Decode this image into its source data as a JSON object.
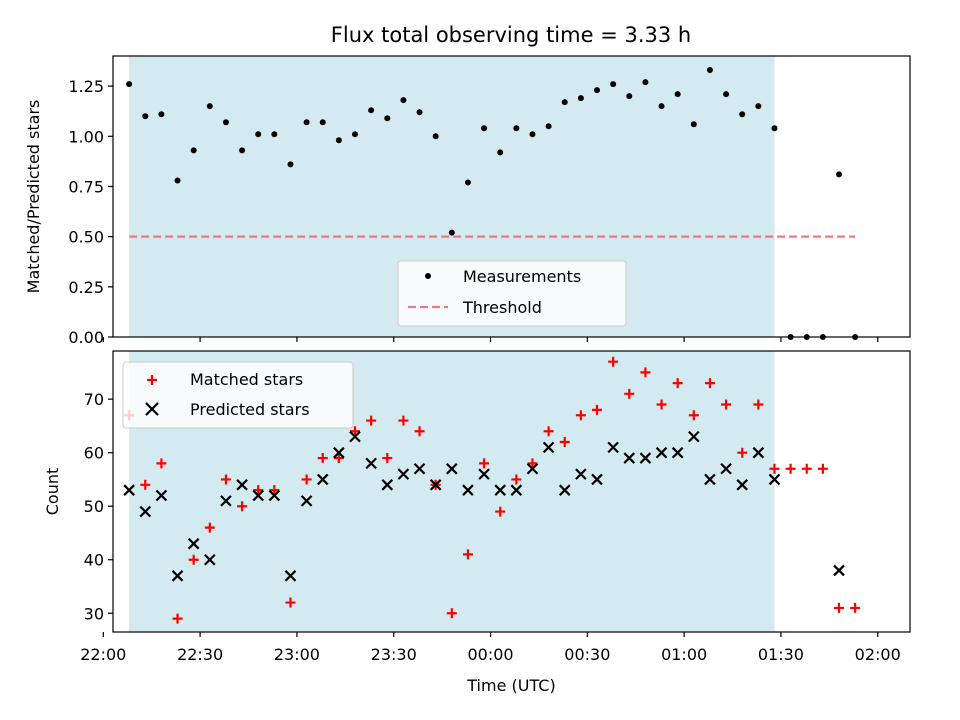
{
  "title": "Flux total observing time = 3.33 h",
  "colors": {
    "span": "#d4eaf1",
    "threshold": "#f07a7a",
    "measurement": "#000000",
    "matched": "#ff0000",
    "predicted": "#000000"
  },
  "chart_data": [
    {
      "type": "scatter",
      "ylabel": "Matched/Predicted stars",
      "ylim": [
        0,
        1.4
      ],
      "xlim_min": [
        -5,
        242
      ],
      "yticks": [
        0,
        0.25,
        0.5,
        0.75,
        1.0,
        1.25
      ],
      "ytick_labels": [
        "0.00",
        "0.25",
        "0.50",
        "0.75",
        "1.00",
        "1.25"
      ],
      "highlight_span_min": [
        0,
        200
      ],
      "threshold": {
        "y": 0.5,
        "x_min": [
          0,
          225
        ]
      },
      "legend": {
        "position": "lower-center",
        "entries": [
          "Measurements",
          "Threshold"
        ]
      },
      "series": [
        {
          "name": "Measurements",
          "x_min": [
            0,
            5,
            10,
            15,
            20,
            25,
            30,
            35,
            40,
            45,
            50,
            55,
            60,
            65,
            70,
            75,
            80,
            85,
            90,
            95,
            100,
            105,
            110,
            115,
            120,
            125,
            130,
            135,
            140,
            145,
            150,
            155,
            160,
            165,
            170,
            175,
            180,
            185,
            190,
            195,
            200,
            205,
            210,
            215,
            220,
            225
          ],
          "y": [
            1.26,
            1.1,
            1.11,
            0.78,
            0.93,
            1.15,
            1.07,
            0.93,
            1.01,
            1.01,
            0.86,
            1.07,
            1.07,
            0.98,
            1.01,
            1.13,
            1.09,
            1.18,
            1.12,
            1.0,
            0.52,
            0.77,
            1.04,
            0.92,
            1.04,
            1.01,
            1.05,
            1.17,
            1.19,
            1.23,
            1.26,
            1.2,
            1.27,
            1.15,
            1.21,
            1.06,
            1.33,
            1.21,
            1.11,
            1.15,
            1.04,
            0.0,
            0.0,
            0.0,
            0.81,
            0.0
          ]
        }
      ]
    },
    {
      "type": "scatter",
      "ylabel": "Count",
      "xlabel": "Time (UTC)",
      "ylim": [
        26.5,
        79
      ],
      "xlim_min": [
        -5,
        242
      ],
      "yticks": [
        30,
        40,
        50,
        60,
        70
      ],
      "xticks_min": [
        -8,
        22,
        52,
        82,
        112,
        142,
        172,
        202,
        232
      ],
      "xtick_labels": [
        "22:00",
        "22:30",
        "23:00",
        "23:30",
        "00:00",
        "00:30",
        "01:00",
        "01:30",
        "02:00"
      ],
      "highlight_span_min": [
        0,
        200
      ],
      "legend": {
        "position": "upper-left",
        "entries": [
          "Matched stars",
          "Predicted stars"
        ]
      },
      "series": [
        {
          "name": "Matched stars",
          "x_min": [
            0,
            5,
            10,
            15,
            20,
            25,
            30,
            35,
            40,
            45,
            50,
            55,
            60,
            65,
            70,
            75,
            80,
            85,
            90,
            95,
            100,
            105,
            110,
            115,
            120,
            125,
            130,
            135,
            140,
            145,
            150,
            155,
            160,
            165,
            170,
            175,
            180,
            185,
            190,
            195,
            200,
            205,
            210,
            215,
            220,
            225
          ],
          "y": [
            67,
            54,
            58,
            29,
            40,
            46,
            55,
            50,
            53,
            53,
            32,
            55,
            59,
            59,
            64,
            66,
            59,
            66,
            64,
            54,
            30,
            41,
            58,
            49,
            55,
            58,
            64,
            62,
            67,
            68,
            77,
            71,
            75,
            69,
            73,
            67,
            73,
            69,
            60,
            69,
            57,
            57,
            57,
            57,
            31,
            31
          ]
        },
        {
          "name": "Predicted stars",
          "x_min": [
            0,
            5,
            10,
            15,
            20,
            25,
            30,
            35,
            40,
            45,
            50,
            55,
            60,
            65,
            70,
            75,
            80,
            85,
            90,
            95,
            100,
            105,
            110,
            115,
            120,
            125,
            130,
            135,
            140,
            145,
            150,
            155,
            160,
            165,
            170,
            175,
            180,
            185,
            190,
            195,
            200,
            220
          ],
          "y": [
            53,
            49,
            52,
            37,
            43,
            40,
            51,
            54,
            52,
            52,
            37,
            51,
            55,
            60,
            63,
            58,
            54,
            56,
            57,
            54,
            57,
            53,
            56,
            53,
            53,
            57,
            61,
            53,
            56,
            55,
            61,
            59,
            59,
            60,
            60,
            63,
            55,
            57,
            54,
            60,
            55,
            38
          ]
        }
      ]
    }
  ]
}
